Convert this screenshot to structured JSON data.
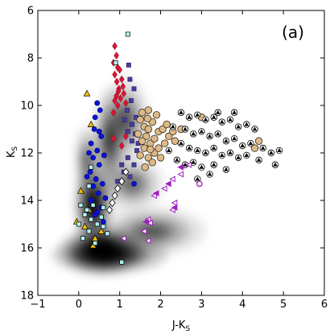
{
  "chart_data": {
    "type": "scatter",
    "panel_label": "(a)",
    "xlabel": "J-K",
    "xlabel_sub": "S",
    "ylabel": "K",
    "ylabel_sub": "S",
    "xlim": [
      -1,
      6
    ],
    "ylim": [
      18,
      6
    ],
    "y_inverted": true,
    "xticks": [
      -1,
      0,
      1,
      2,
      3,
      4,
      5,
      6
    ],
    "yticks": [
      6,
      8,
      10,
      12,
      14,
      16,
      18
    ],
    "grid": false,
    "background_density": {
      "description_colors": [
        "#e6e6e6",
        "#b3b3b3",
        "#6e6e6e",
        "#202020"
      ],
      "blobs": [
        {
          "cx": 0.55,
          "cy": 16.1,
          "rx": 0.95,
          "ry": 1.0,
          "level": 0.9
        },
        {
          "cx": 0.75,
          "cy": 16.3,
          "rx": 1.4,
          "ry": 0.75,
          "level": 0.7
        },
        {
          "cx": 0.35,
          "cy": 14.2,
          "rx": 0.45,
          "ry": 1.7,
          "level": 0.8
        },
        {
          "cx": 0.75,
          "cy": 11.5,
          "rx": 0.4,
          "ry": 2.2,
          "level": 0.45
        },
        {
          "cx": 1.15,
          "cy": 10.6,
          "rx": 0.55,
          "ry": 1.8,
          "level": 0.35
        },
        {
          "cx": 1.8,
          "cy": 15.3,
          "rx": 1.3,
          "ry": 1.0,
          "level": 0.35
        },
        {
          "cx": 1.3,
          "cy": 13.3,
          "rx": 0.8,
          "ry": 1.2,
          "level": 0.3
        },
        {
          "cx": 0.2,
          "cy": 12.3,
          "rx": 0.3,
          "ry": 1.5,
          "level": 0.35
        }
      ]
    },
    "series": [
      {
        "marker": "diamond",
        "color": "#dc143c",
        "edge": "#8b0000",
        "points": [
          [
            0.88,
            7.5
          ],
          [
            0.92,
            7.9
          ],
          [
            0.85,
            8.2
          ],
          [
            0.95,
            8.4
          ],
          [
            0.88,
            8.7
          ],
          [
            1.0,
            8.5
          ],
          [
            0.93,
            9.0
          ],
          [
            1.05,
            8.9
          ],
          [
            0.98,
            9.3
          ],
          [
            1.08,
            9.2
          ],
          [
            0.92,
            9.6
          ],
          [
            1.02,
            9.7
          ],
          [
            0.95,
            10.0
          ],
          [
            0.88,
            9.8
          ],
          [
            1.1,
            9.5
          ],
          [
            1.15,
            9.9
          ],
          [
            0.85,
            10.3
          ],
          [
            0.85,
            11.4
          ],
          [
            1.05,
            11.7
          ],
          [
            1.15,
            11.3
          ],
          [
            0.97,
            9.4
          ]
        ]
      },
      {
        "marker": "square",
        "color": "#4b3d9b",
        "edge": "#2a1f6b",
        "points": [
          [
            1.22,
            8.3
          ],
          [
            1.25,
            8.9
          ],
          [
            1.35,
            9.3
          ],
          [
            1.28,
            9.8
          ],
          [
            1.18,
            10.2
          ],
          [
            1.4,
            10.5
          ],
          [
            1.3,
            10.8
          ],
          [
            1.2,
            11.1
          ],
          [
            1.3,
            11.5
          ],
          [
            1.42,
            11.9
          ],
          [
            1.2,
            12.2
          ],
          [
            1.35,
            12.5
          ],
          [
            1.1,
            12.8
          ],
          [
            1.25,
            13.0
          ],
          [
            0.95,
            13.2
          ],
          [
            1.05,
            12.5
          ],
          [
            1.38,
            11.2
          ],
          [
            1.12,
            10.6
          ],
          [
            1.45,
            11.6
          ]
        ]
      },
      {
        "marker": "circle",
        "color": "#0a14d6",
        "edge": "#00008b",
        "points": [
          [
            0.45,
            9.9
          ],
          [
            0.52,
            10.2
          ],
          [
            0.4,
            10.5
          ],
          [
            0.38,
            11.0
          ],
          [
            0.55,
            11.3
          ],
          [
            0.3,
            11.6
          ],
          [
            0.45,
            11.9
          ],
          [
            0.35,
            12.2
          ],
          [
            0.5,
            12.5
          ],
          [
            0.28,
            12.8
          ],
          [
            0.42,
            13.1
          ],
          [
            0.35,
            13.4
          ],
          [
            0.48,
            13.7
          ],
          [
            0.3,
            14.0
          ],
          [
            0.55,
            14.3
          ],
          [
            0.4,
            14.6
          ],
          [
            0.6,
            14.9
          ],
          [
            0.5,
            11.1
          ],
          [
            0.25,
            12.0
          ],
          [
            0.62,
            12.1
          ],
          [
            0.58,
            13.3
          ],
          [
            1.35,
            13.3
          ],
          [
            0.65,
            13.9
          ],
          [
            0.2,
            13.0
          ],
          [
            0.45,
            14.5
          ]
        ]
      },
      {
        "marker": "triangle",
        "color": "#f2c000",
        "edge": "#000000",
        "points": [
          [
            0.2,
            9.5
          ],
          [
            0.3,
            10.8
          ],
          [
            0.05,
            13.6
          ],
          [
            0.25,
            14.4
          ],
          [
            -0.05,
            14.9
          ],
          [
            0.15,
            15.1
          ],
          [
            0.4,
            15.6
          ],
          [
            0.55,
            15.3
          ],
          [
            0.35,
            15.9
          ]
        ]
      },
      {
        "marker": "square",
        "color": "#aef0f0",
        "edge": "#000000",
        "points": [
          [
            1.2,
            7.0
          ],
          [
            0.9,
            8.2
          ],
          [
            0.3,
            12.6
          ],
          [
            0.25,
            13.4
          ],
          [
            0.05,
            14.2
          ],
          [
            0.15,
            14.6
          ],
          [
            0.3,
            14.8
          ],
          [
            0.45,
            15.0
          ],
          [
            0.25,
            15.3
          ],
          [
            0.6,
            15.1
          ],
          [
            0.1,
            15.6
          ],
          [
            0.4,
            15.8
          ],
          [
            0.7,
            15.4
          ],
          [
            0.2,
            14.4
          ],
          [
            0.0,
            15.0
          ],
          [
            0.55,
            14.7
          ],
          [
            0.35,
            14.2
          ],
          [
            1.05,
            16.6
          ],
          [
            0.6,
            14.3
          ]
        ]
      },
      {
        "marker": "circle",
        "color": "#dcb98a",
        "edge": "#3a2a10",
        "points": [
          [
            1.5,
            10.6
          ],
          [
            1.6,
            10.9
          ],
          [
            1.7,
            11.0
          ],
          [
            1.8,
            10.7
          ],
          [
            1.65,
            11.3
          ],
          [
            1.55,
            11.5
          ],
          [
            1.75,
            11.6
          ],
          [
            1.85,
            11.4
          ],
          [
            1.95,
            11.1
          ],
          [
            2.05,
            11.0
          ],
          [
            1.9,
            10.4
          ],
          [
            1.7,
            10.2
          ],
          [
            1.6,
            11.8
          ],
          [
            1.5,
            12.1
          ],
          [
            1.7,
            12.2
          ],
          [
            1.85,
            12.0
          ],
          [
            1.95,
            11.8
          ],
          [
            2.1,
            11.6
          ],
          [
            2.2,
            11.3
          ],
          [
            2.3,
            11.1
          ],
          [
            1.45,
            11.2
          ],
          [
            1.55,
            10.3
          ],
          [
            1.8,
            12.4
          ],
          [
            1.62,
            12.6
          ],
          [
            2.0,
            12.2
          ],
          [
            2.15,
            10.8
          ],
          [
            2.35,
            11.5
          ],
          [
            2.5,
            11.0
          ],
          [
            1.75,
            11.85
          ],
          [
            1.68,
            10.55
          ],
          [
            3.0,
            10.5
          ],
          [
            4.3,
            11.8
          ],
          [
            4.4,
            11.5
          ]
        ]
      },
      {
        "marker": "triangle-in-circle",
        "color": "#000000",
        "edge": "#000000",
        "points": [
          [
            2.5,
            10.3
          ],
          [
            2.7,
            10.5
          ],
          [
            2.9,
            10.4
          ],
          [
            3.1,
            10.6
          ],
          [
            3.3,
            10.5
          ],
          [
            3.5,
            10.7
          ],
          [
            3.7,
            10.6
          ],
          [
            3.9,
            10.9
          ],
          [
            4.1,
            10.8
          ],
          [
            4.3,
            11.0
          ],
          [
            2.6,
            11.0
          ],
          [
            2.8,
            11.2
          ],
          [
            3.0,
            11.1
          ],
          [
            3.2,
            11.3
          ],
          [
            3.4,
            11.2
          ],
          [
            3.6,
            11.5
          ],
          [
            3.8,
            11.4
          ],
          [
            4.0,
            11.7
          ],
          [
            4.2,
            11.6
          ],
          [
            4.5,
            11.8
          ],
          [
            2.5,
            11.6
          ],
          [
            2.7,
            11.8
          ],
          [
            2.9,
            11.9
          ],
          [
            3.1,
            12.0
          ],
          [
            3.3,
            11.8
          ],
          [
            3.5,
            12.1
          ],
          [
            3.7,
            12.0
          ],
          [
            3.9,
            12.2
          ],
          [
            4.1,
            12.1
          ],
          [
            4.4,
            12.3
          ],
          [
            4.7,
            12.0
          ],
          [
            4.9,
            11.9
          ],
          [
            2.4,
            12.3
          ],
          [
            2.6,
            12.5
          ],
          [
            2.8,
            12.4
          ],
          [
            3.0,
            12.6
          ],
          [
            3.3,
            12.5
          ],
          [
            3.6,
            12.7
          ],
          [
            2.3,
            10.9
          ],
          [
            2.2,
            11.9
          ],
          [
            3.4,
            10.3
          ],
          [
            3.8,
            10.3
          ],
          [
            2.9,
            13.1
          ],
          [
            4.8,
            12.5
          ],
          [
            3.2,
            12.9
          ]
        ]
      },
      {
        "marker": "diamond-open",
        "color": "#ffffff",
        "edge": "#000000",
        "points": [
          [
            1.15,
            12.8
          ],
          [
            1.05,
            13.2
          ],
          [
            0.95,
            13.5
          ],
          [
            0.88,
            13.8
          ],
          [
            0.82,
            14.1
          ],
          [
            0.75,
            14.4
          ]
        ]
      },
      {
        "marker": "triangle-left",
        "color": "#ffffff",
        "edge": "#a020c0",
        "points": [
          [
            2.7,
            12.5
          ],
          [
            2.5,
            12.9
          ],
          [
            2.3,
            13.1
          ],
          [
            2.1,
            13.5
          ],
          [
            2.35,
            14.1
          ],
          [
            2.3,
            14.4
          ],
          [
            1.7,
            14.8
          ],
          [
            1.75,
            14.95
          ],
          [
            1.6,
            15.3
          ],
          [
            1.1,
            15.6
          ],
          [
            1.7,
            15.7
          ],
          [
            1.85,
            13.8
          ]
        ]
      },
      {
        "marker": "triangle-left",
        "color": "#a020c0",
        "edge": "#a020c0",
        "points": [
          [
            2.5,
            12.6
          ],
          [
            2.2,
            13.3
          ],
          [
            1.9,
            13.7
          ],
          [
            2.35,
            14.3
          ],
          [
            1.65,
            14.9
          ]
        ]
      },
      {
        "marker": "circle-open",
        "color": "#ffffff",
        "edge": "#a020c0",
        "points": [
          [
            2.95,
            13.3
          ]
        ]
      }
    ]
  }
}
